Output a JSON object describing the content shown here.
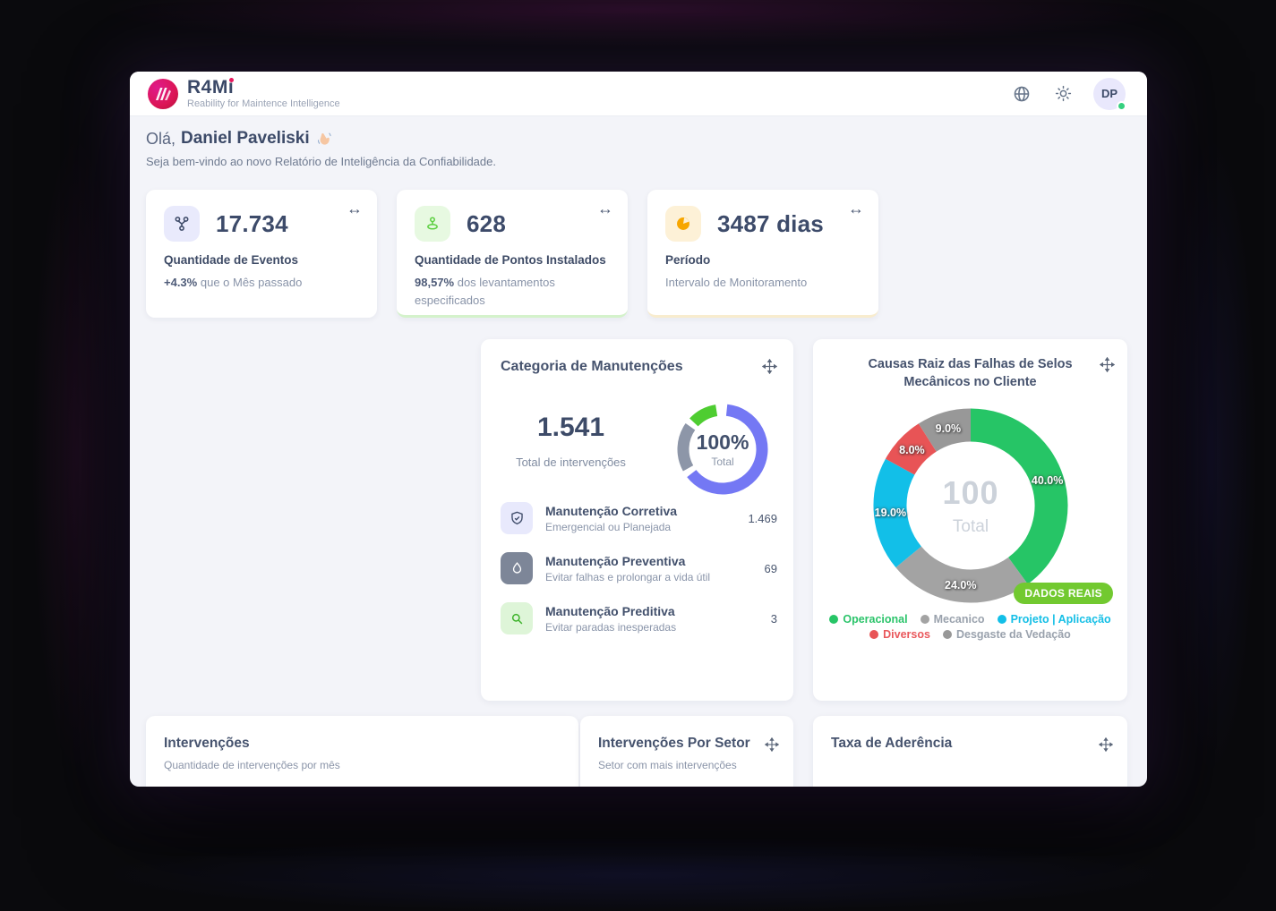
{
  "header": {
    "logo_title": "R4Mi",
    "logo_tagline": "Reability for Maintence Intelligence",
    "avatar_initials": "DP"
  },
  "greeting": {
    "prefix": "Olá,",
    "name": "Daniel Paveliski",
    "subtitle": "Seja bem-vindo ao novo Relatório de Inteligência da Confiabilidade."
  },
  "stats": [
    {
      "icon": "branch-icon",
      "value": "17.734",
      "title": "Quantidade de Eventos",
      "highlight": "+4.3%",
      "note": "que o Mês passado"
    },
    {
      "icon": "pin-drop-icon",
      "value": "628",
      "title": "Quantidade de Pontos Instalados",
      "highlight": "98,57%",
      "note": "dos levantamentos especificados"
    },
    {
      "icon": "pie-clock-icon",
      "value": "3487 dias",
      "title": "Período",
      "highlight": "",
      "note": "Intervalo de Monitoramento"
    }
  ],
  "maintenance_card": {
    "title": "Categoria de Manutenções",
    "total_value": "1.541",
    "total_label": "Total de intervenções",
    "donut_center_value": "100%",
    "donut_center_label": "Total",
    "donut_segments": [
      {
        "color": "#7478f4",
        "start": 6,
        "end": 232
      },
      {
        "color": "#8d96a8",
        "start": 241,
        "end": 305
      },
      {
        "color": "#4ecd31",
        "start": 313,
        "end": 351
      }
    ],
    "items": [
      {
        "title": "Manutenção Corretiva",
        "subtitle": "Emergencial ou Planejada",
        "value": "1.469"
      },
      {
        "title": "Manutenção Preventiva",
        "subtitle": "Evitar falhas e prolongar a vida útil",
        "value": "69"
      },
      {
        "title": "Manutenção Preditiva",
        "subtitle": "Evitar paradas inesperadas",
        "value": "3"
      }
    ]
  },
  "root_cause_card": {
    "title": "Causas Raiz das Falhas de Selos Mecânicos no Cliente",
    "center_value": "100",
    "center_label": "Total",
    "badge": "DADOS REAIS",
    "slices": [
      {
        "label": "Operacional",
        "pct": 40.0,
        "color": "#26c566",
        "legend_color": "#2cc46b"
      },
      {
        "label": "Mecanico",
        "pct": 24.0,
        "color": "#a3a3a3",
        "legend_color": "#9aa2ad"
      },
      {
        "label": "Projeto | Aplicação",
        "pct": 19.0,
        "color": "#12bfe8",
        "legend_color": "#14bfe6"
      },
      {
        "label": "Diversos",
        "pct": 8.0,
        "color": "#e85456",
        "legend_color": "#e9585c"
      },
      {
        "label": "Desgaste da Vedação",
        "pct": 9.0,
        "color": "#989898",
        "legend_color": "#9aa2ad"
      }
    ]
  },
  "bottom_cards": [
    {
      "title": "Intervenções",
      "subtitle": "Quantidade de intervenções por mês"
    },
    {
      "title": "Intervenções Por Setor",
      "subtitle": "Setor com mais intervenções"
    },
    {
      "title": "Taxa de Aderência",
      "subtitle": ""
    }
  ],
  "chart_data": [
    {
      "type": "pie",
      "title": "Categoria de Manutenções",
      "center_text": "100% Total",
      "categories": [
        "Manutenção Corretiva",
        "Manutenção Preventiva",
        "Manutenção Preditiva"
      ],
      "values": [
        1469,
        69,
        3
      ],
      "total": 1541,
      "legend_position": "list-left"
    },
    {
      "type": "pie",
      "title": "Causas Raiz das Falhas de Selos Mecânicos no Cliente",
      "center_text": "100 Total",
      "categories": [
        "Operacional",
        "Mecanico",
        "Projeto | Aplicação",
        "Diversos",
        "Desgaste da Vedação"
      ],
      "values": [
        40.0,
        24.0,
        19.0,
        8.0,
        9.0
      ],
      "total": 100,
      "annotation": "DADOS REAIS",
      "legend_position": "bottom"
    }
  ]
}
